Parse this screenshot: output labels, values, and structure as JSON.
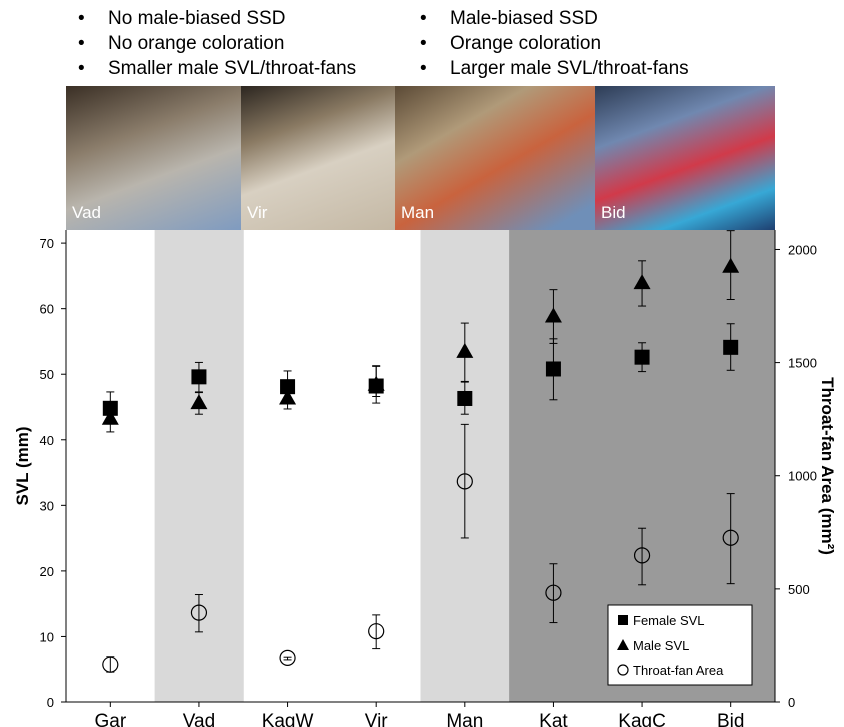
{
  "header": {
    "left_bullets": [
      "No male-biased SSD",
      "No orange coloration",
      "Smaller male SVL/throat-fans"
    ],
    "right_bullets": [
      "Male-biased SSD",
      "Orange coloration",
      "Larger male SVL/throat-fans"
    ],
    "bullet_symbol": "•"
  },
  "photos": [
    {
      "caption": "Vad"
    },
    {
      "caption": "Vir"
    },
    {
      "caption": "Man"
    },
    {
      "caption": "Bid"
    }
  ],
  "chart_data": {
    "type": "scatter",
    "categories": [
      "Gar",
      "Vad",
      "KagW",
      "Vir",
      "Man",
      "Kat",
      "KagC",
      "Bid"
    ],
    "y_left": {
      "label": "SVL (mm)",
      "lim": [
        0,
        72
      ],
      "ticks": [
        0,
        10,
        20,
        30,
        40,
        50,
        60,
        70
      ]
    },
    "y_right": {
      "label": "Throat-fan Area (mm²)",
      "lim": [
        0,
        2086
      ],
      "ticks": [
        0,
        500,
        1000,
        1500,
        2000
      ]
    },
    "shading": [
      "none",
      "light",
      "none",
      "none",
      "light",
      "dark",
      "dark",
      "dark"
    ],
    "colors": {
      "light": "#d9d9d9",
      "dark": "#9a9a9a"
    },
    "legend_position": "bottom-right",
    "series": [
      {
        "name": "Female SVL",
        "marker": "square",
        "axis": "left",
        "values": [
          44.8,
          49.6,
          48.1,
          48.2,
          46.3,
          50.8,
          52.6,
          54.1
        ],
        "err_low": [
          42.4,
          47.3,
          45.8,
          45.6,
          43.9,
          46.1,
          50.4,
          50.6
        ],
        "err_high": [
          47.3,
          51.8,
          50.5,
          51.3,
          48.9,
          55.4,
          54.8,
          57.7
        ]
      },
      {
        "name": "Male SVL",
        "marker": "triangle",
        "axis": "left",
        "values": [
          43.2,
          45.6,
          46.3,
          48.4,
          53.4,
          58.8,
          63.9,
          66.4
        ],
        "err_low": [
          41.2,
          43.9,
          44.7,
          46.6,
          48.8,
          54.7,
          60.4,
          61.4
        ],
        "err_high": [
          45.4,
          47.2,
          47.7,
          51.2,
          57.8,
          62.9,
          67.3,
          71.9
        ]
      },
      {
        "name": "Throat-fan Area",
        "marker": "circle",
        "axis": "right",
        "values": [
          165,
          395,
          195,
          313,
          975,
          483,
          648,
          726
        ],
        "err_low": [
          132,
          310,
          186,
          236,
          725,
          351,
          518,
          523
        ],
        "err_high": [
          200,
          475,
          198,
          385,
          1227,
          611,
          768,
          921
        ]
      }
    ]
  }
}
